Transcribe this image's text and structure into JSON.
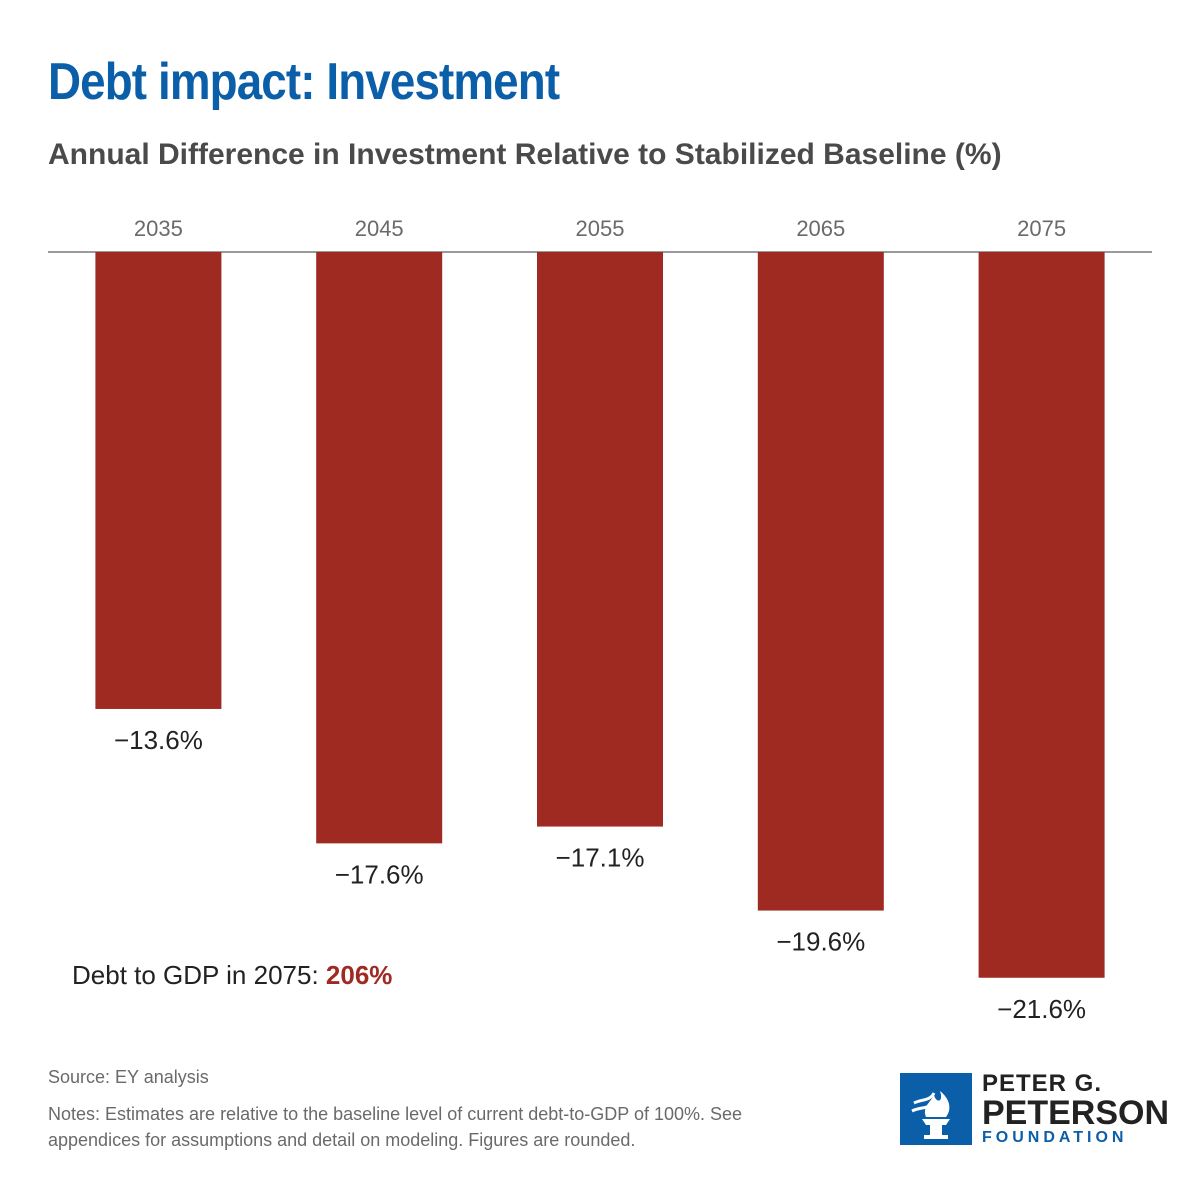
{
  "header": {
    "title": "Debt impact: Investment",
    "subtitle": "Annual Difference in Investment Relative to Stabilized Baseline (%)"
  },
  "chart_data": {
    "type": "bar",
    "categories": [
      "2035",
      "2045",
      "2055",
      "2065",
      "2075"
    ],
    "values": [
      -13.6,
      -17.6,
      -17.1,
      -19.6,
      -21.6
    ],
    "value_labels": [
      "−13.6%",
      "−17.6%",
      "−17.1%",
      "−19.6%",
      "−21.6%"
    ],
    "title": "Debt impact: Investment",
    "subtitle": "Annual Difference in Investment Relative to Stabilized Baseline (%)",
    "xlabel": "",
    "ylabel": "",
    "ylim": [
      -24,
      0
    ],
    "category_axis_position": "top",
    "grid": false,
    "bar_color": "#9e2a22"
  },
  "annotation": {
    "debt_label": "Debt to GDP in 2075: ",
    "debt_value": "206%"
  },
  "footer": {
    "source": "Source: EY analysis",
    "notes": "Notes: Estimates are relative to the baseline level of current debt-to-GDP of 100%. See appendices for assumptions and detail on modeling. Figures are rounded."
  },
  "logo": {
    "line1": "PETER G.",
    "line2": "PETERSON",
    "line3": "FOUNDATION",
    "icon": "torch-icon"
  },
  "colors": {
    "title": "#0b5ea8",
    "bar": "#9e2a22",
    "accent": "#9e2a22"
  }
}
